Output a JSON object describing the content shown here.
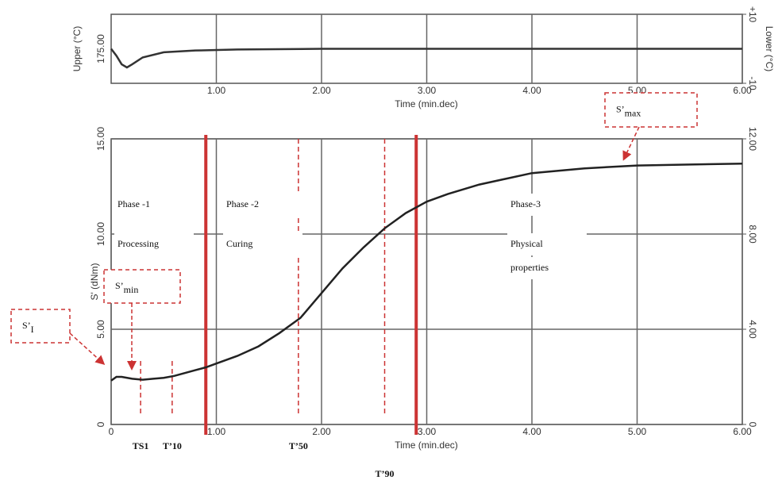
{
  "chart_data": [
    {
      "type": "line",
      "ylabel": "Upper (°C)",
      "y2label": "Lower (°C)",
      "xlabel": "Time (min.dec)",
      "xlim": [
        0,
        6
      ],
      "xticks": [
        {
          "value": 1,
          "label": "1.00"
        },
        {
          "value": 2,
          "label": "2.00"
        },
        {
          "value": 3,
          "label": "3.00"
        },
        {
          "value": 4,
          "label": "4.00"
        },
        {
          "value": 5,
          "label": "5.00"
        },
        {
          "value": 6,
          "label": "6.00"
        }
      ],
      "ylim": [
        170,
        180
      ],
      "yticks": [
        {
          "value": 175,
          "label": "175.00"
        }
      ],
      "y2lim": [
        -10,
        10
      ],
      "y2ticks": [
        {
          "value": 10,
          "label": "+10"
        },
        -10
      ],
      "grid": true,
      "series": [
        {
          "color": "#333333",
          "axis": "y2",
          "x": [
            0,
            0.05,
            0.1,
            0.15,
            0.2,
            0.3,
            0.5,
            0.8,
            1.2,
            2,
            3,
            4,
            5,
            6
          ],
          "values": [
            0,
            -2,
            -4.5,
            -5.4,
            -4.5,
            -2.5,
            -1,
            -0.5,
            -0.2,
            0,
            0,
            0,
            0,
            0
          ]
        }
      ]
    },
    {
      "type": "line",
      "ylabel": "S' (dNm)",
      "xlabel": "Time (min.dec)",
      "xlim": [
        0,
        6
      ],
      "xticks": [
        0,
        {
          "value": 1,
          "label": "1.00"
        },
        {
          "value": 2,
          "label": "2.00"
        },
        {
          "value": 3,
          "label": "3.00"
        },
        {
          "value": 4,
          "label": "4.00"
        },
        {
          "value": 5,
          "label": "5.00"
        },
        {
          "value": 6,
          "label": "6.00"
        }
      ],
      "ylim": [
        0,
        15
      ],
      "yticks": [
        0,
        {
          "value": 5,
          "label": "5.00"
        },
        {
          "value": 10,
          "label": "10.00"
        },
        {
          "value": 15,
          "label": "15.00"
        }
      ],
      "y2lim": [
        0,
        12
      ],
      "y2ticks": [
        0,
        {
          "value": 4,
          "label": "4.00"
        },
        {
          "value": 8,
          "label": "8.00"
        },
        {
          "value": 12,
          "label": "12.00"
        }
      ],
      "grid": true,
      "series": [
        {
          "color": "#222222",
          "x": [
            0,
            0.05,
            0.1,
            0.2,
            0.3,
            0.4,
            0.5,
            0.6,
            0.7,
            0.8,
            0.9,
            1.0,
            1.2,
            1.4,
            1.6,
            1.8,
            2.0,
            2.2,
            2.4,
            2.6,
            2.8,
            3.0,
            3.2,
            3.5,
            4.0,
            4.5,
            5.0,
            5.5,
            6.0
          ],
          "values": [
            2.3,
            2.5,
            2.5,
            2.4,
            2.35,
            2.4,
            2.45,
            2.55,
            2.7,
            2.85,
            3.0,
            3.2,
            3.6,
            4.1,
            4.8,
            5.6,
            6.9,
            8.2,
            9.3,
            10.3,
            11.1,
            11.7,
            12.1,
            12.6,
            13.2,
            13.45,
            13.6,
            13.65,
            13.7
          ]
        }
      ],
      "phase_boundaries": [
        0.9,
        2.9
      ],
      "boundary_color": "#cc3333",
      "markers": [
        {
          "label": "TS1",
          "x": 0.28
        },
        {
          "label": "T’10",
          "x": 0.58
        },
        {
          "label": "T’50",
          "x": 1.78
        },
        {
          "label": "T’90",
          "x": 2.6
        }
      ],
      "phases": [
        {
          "title": "Phase -1",
          "lines": [
            "Processing"
          ]
        },
        {
          "title": "Phase -2",
          "lines": [
            "Curing"
          ]
        },
        {
          "title": "Phase-3",
          "lines": [
            "Physical",
            "properties"
          ]
        }
      ],
      "callouts": [
        {
          "label": "S’",
          "sub": "I"
        },
        {
          "label": "S’",
          "sub": "min"
        },
        {
          "label": "S’",
          "sub": "max"
        }
      ]
    }
  ]
}
